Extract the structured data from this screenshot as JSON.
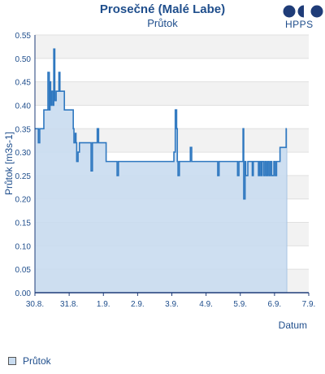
{
  "chart_data": {
    "type": "area",
    "title": "Prosečné (Malé Labe)",
    "subtitle": "Průtok",
    "ylabel": "Průtok [m3s-1]",
    "xlabel": "Datum",
    "ylim": [
      0,
      0.55
    ],
    "yticks": [
      "0.00",
      "0.05",
      "0.10",
      "0.15",
      "0.20",
      "0.25",
      "0.30",
      "0.35",
      "0.40",
      "0.45",
      "0.50",
      "0.55"
    ],
    "xticks": [
      "30.8.",
      "31.8.",
      "1.9.",
      "2.9.",
      "3.9.",
      "4.9.",
      "5.9.",
      "6.9.",
      "7.9."
    ],
    "xlim_days": [
      0,
      8
    ],
    "grid": true,
    "legend_position": "bottom-left",
    "series": [
      {
        "name": "Průtok",
        "color": "#2f78c0",
        "fill": "#c9dcf0",
        "points": [
          [
            0.0,
            0.35
          ],
          [
            0.08,
            0.35
          ],
          [
            0.1,
            0.32
          ],
          [
            0.14,
            0.35
          ],
          [
            0.22,
            0.35
          ],
          [
            0.26,
            0.39
          ],
          [
            0.36,
            0.39
          ],
          [
            0.38,
            0.47
          ],
          [
            0.42,
            0.39
          ],
          [
            0.44,
            0.45
          ],
          [
            0.46,
            0.4
          ],
          [
            0.48,
            0.43
          ],
          [
            0.52,
            0.4
          ],
          [
            0.55,
            0.52
          ],
          [
            0.58,
            0.41
          ],
          [
            0.62,
            0.43
          ],
          [
            0.66,
            0.43
          ],
          [
            0.7,
            0.47
          ],
          [
            0.73,
            0.43
          ],
          [
            0.82,
            0.43
          ],
          [
            0.86,
            0.39
          ],
          [
            1.08,
            0.39
          ],
          [
            1.12,
            0.35
          ],
          [
            1.14,
            0.32
          ],
          [
            1.18,
            0.34
          ],
          [
            1.2,
            0.32
          ],
          [
            1.22,
            0.28
          ],
          [
            1.26,
            0.3
          ],
          [
            1.3,
            0.32
          ],
          [
            1.6,
            0.32
          ],
          [
            1.64,
            0.26
          ],
          [
            1.68,
            0.32
          ],
          [
            1.78,
            0.32
          ],
          [
            1.82,
            0.35
          ],
          [
            1.86,
            0.32
          ],
          [
            2.04,
            0.32
          ],
          [
            2.08,
            0.28
          ],
          [
            2.36,
            0.28
          ],
          [
            2.4,
            0.25
          ],
          [
            2.44,
            0.28
          ],
          [
            4.0,
            0.28
          ],
          [
            4.06,
            0.3
          ],
          [
            4.1,
            0.39
          ],
          [
            4.14,
            0.35
          ],
          [
            4.16,
            0.28
          ],
          [
            4.18,
            0.25
          ],
          [
            4.22,
            0.28
          ],
          [
            4.5,
            0.28
          ],
          [
            4.54,
            0.31
          ],
          [
            4.58,
            0.28
          ],
          [
            5.3,
            0.28
          ],
          [
            5.34,
            0.25
          ],
          [
            5.38,
            0.28
          ],
          [
            5.88,
            0.28
          ],
          [
            5.92,
            0.25
          ],
          [
            5.96,
            0.28
          ],
          [
            6.06,
            0.28
          ],
          [
            6.08,
            0.35
          ],
          [
            6.1,
            0.2
          ],
          [
            6.14,
            0.28
          ],
          [
            6.16,
            0.25
          ],
          [
            6.22,
            0.28
          ],
          [
            6.32,
            0.28
          ],
          [
            6.35,
            0.25
          ],
          [
            6.38,
            0.28
          ],
          [
            6.5,
            0.28
          ],
          [
            6.53,
            0.25
          ],
          [
            6.56,
            0.28
          ],
          [
            6.6,
            0.25
          ],
          [
            6.63,
            0.28
          ],
          [
            6.68,
            0.25
          ],
          [
            6.72,
            0.28
          ],
          [
            6.76,
            0.25
          ],
          [
            6.8,
            0.28
          ],
          [
            6.84,
            0.25
          ],
          [
            6.88,
            0.28
          ],
          [
            6.92,
            0.25
          ],
          [
            6.98,
            0.28
          ],
          [
            7.02,
            0.25
          ],
          [
            7.06,
            0.28
          ],
          [
            7.12,
            0.28
          ],
          [
            7.16,
            0.31
          ],
          [
            7.3,
            0.31
          ],
          [
            7.34,
            0.35
          ],
          [
            7.36,
            0.35
          ]
        ]
      }
    ]
  },
  "logo": {
    "text": "HPPS",
    "color": "#1f3c78"
  },
  "legend": {
    "label": "Průtok"
  }
}
